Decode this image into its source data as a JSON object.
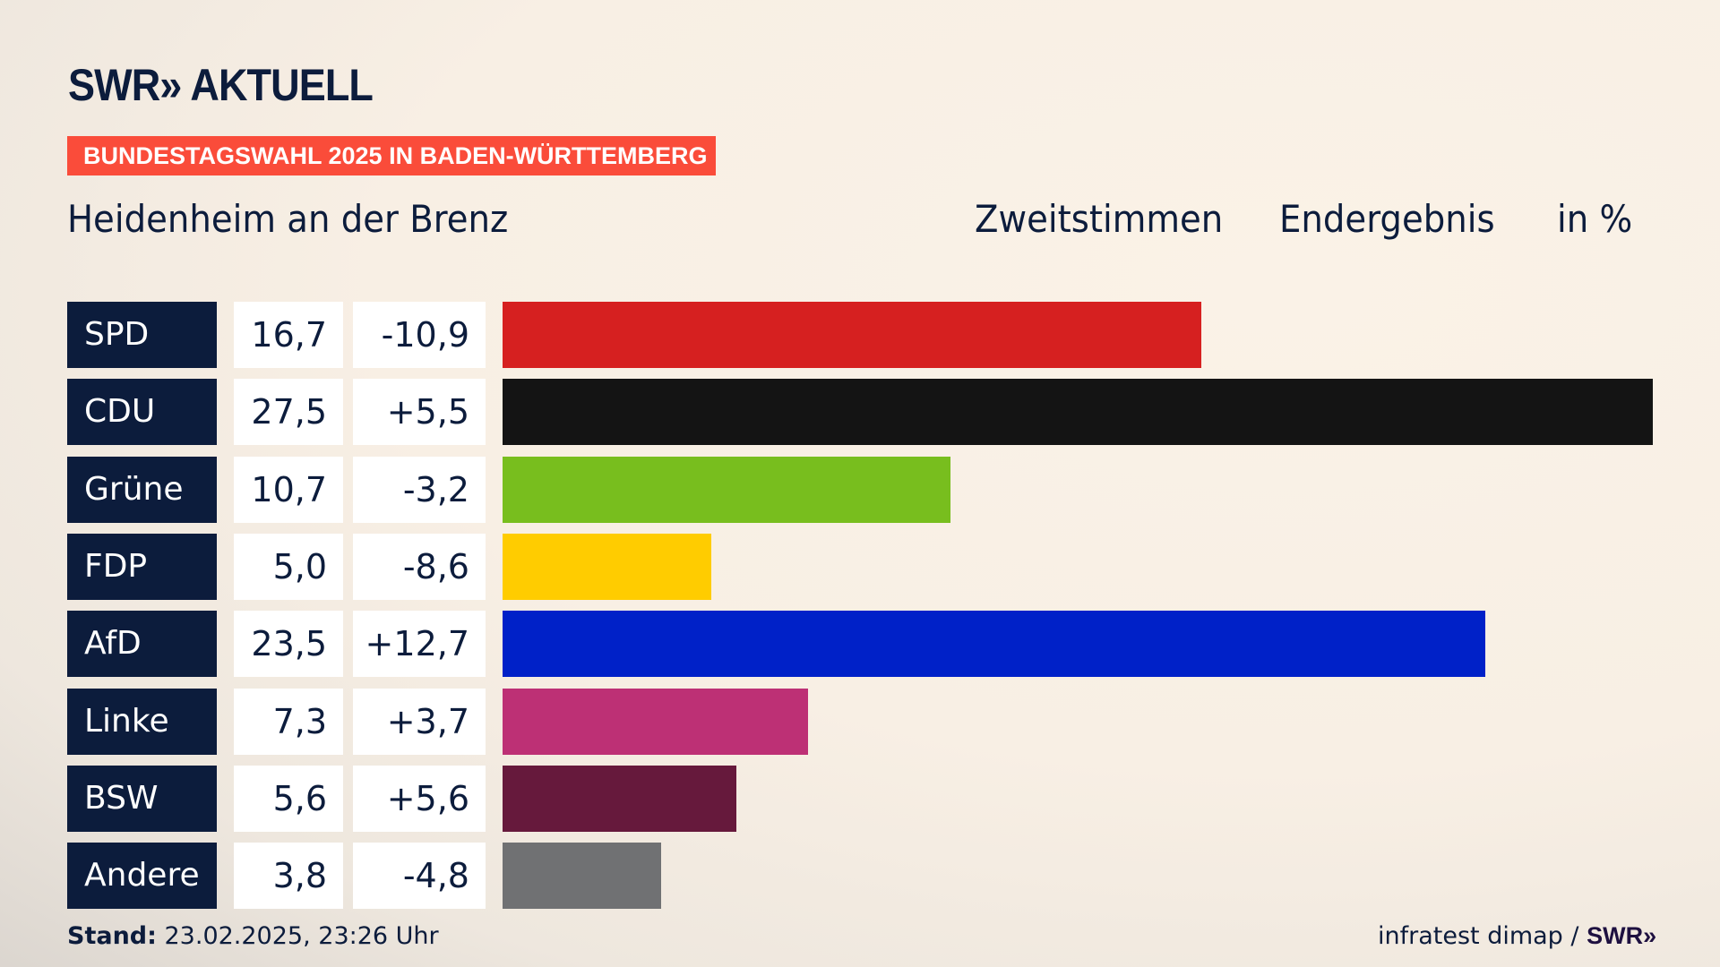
{
  "header": {
    "logo": "SWR» AKTUELL",
    "banner": "BUNDESTAGSWAHL 2025 IN BADEN-WÜRTTEMBERG",
    "place": "Heidenheim an der Brenz",
    "vote_type": "Zweitstimmen",
    "result_type": "Endergebnis",
    "unit": "in %"
  },
  "chart_data": {
    "type": "bar",
    "orientation": "horizontal",
    "title": "Heidenheim an der Brenz – Zweitstimmen Endergebnis in %",
    "categories": [
      "SPD",
      "CDU",
      "Grüne",
      "FDP",
      "AfD",
      "Linke",
      "BSW",
      "Andere"
    ],
    "values": [
      16.7,
      27.5,
      10.7,
      5.0,
      23.5,
      7.3,
      5.6,
      3.8
    ],
    "value_labels": [
      "16,7",
      "27,5",
      "10,7",
      "5,0",
      "23,5",
      "7,3",
      "5,6",
      "3,8"
    ],
    "diff_labels": [
      "-10,9",
      "+5,5",
      "-3,2",
      "-8,6",
      "+12,7",
      "+3,7",
      "+5,6",
      "-4,8"
    ],
    "colors": [
      "#d62020",
      "#141414",
      "#78be1e",
      "#ffcc00",
      "#0021c8",
      "#bd3075",
      "#66193c",
      "#707173"
    ],
    "xlim": [
      0,
      27.5
    ]
  },
  "footer": {
    "stand_label": "Stand:",
    "stand_value": " 23.02.2025, 23:26 Uhr",
    "source": "infratest dimap / ",
    "source_logo": "SWR»"
  }
}
